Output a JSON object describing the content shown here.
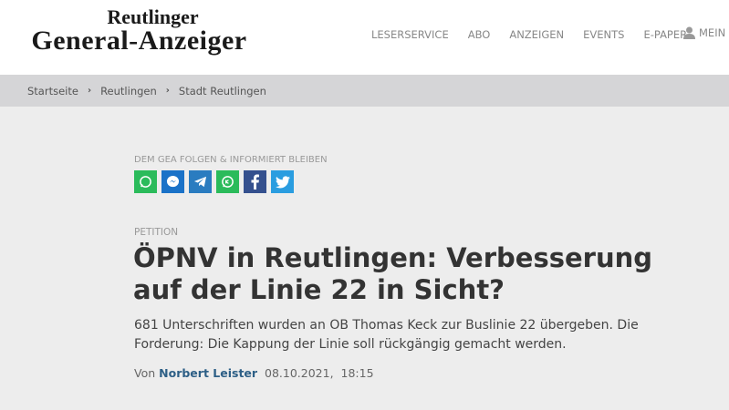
{
  "logo": {
    "line1": "Reutlinger",
    "line2": "General-Anzeiger"
  },
  "nav": [
    "LESERSERVICE",
    "ABO",
    "ANZEIGEN",
    "EVENTS",
    "E-PAPER"
  ],
  "user": {
    "label": "MEIN",
    "icon": "user-icon"
  },
  "breadcrumb": [
    "Startseite",
    "Reutlingen",
    "Stadt Reutlingen"
  ],
  "follow": {
    "label": "DEM GEA FOLGEN & INFORMIERT BLEIBEN",
    "icons": [
      {
        "name": "whatsapp",
        "color": "#2bbb5b"
      },
      {
        "name": "messenger",
        "color": "#1a72c8"
      },
      {
        "name": "telegram",
        "color": "#2a7cc0"
      },
      {
        "name": "whatsapp-channel",
        "color": "#2bbb5b"
      },
      {
        "name": "facebook",
        "color": "#34508e"
      },
      {
        "name": "twitter",
        "color": "#2a9de0"
      }
    ]
  },
  "article": {
    "kicker": "PETITION",
    "title": "ÖPNV in Reutlingen: Verbesserung auf der Linie 22 in Sicht?",
    "lead": "681 Unterschriften wurden an OB Thomas Keck zur Buslinie 22 übergeben. Die Forderung: Die Kappung der Linie soll rückgängig gemacht werden.",
    "by": "Von",
    "author": "Norbert Leister",
    "date": "08.10.2021,",
    "time": "18:15"
  }
}
